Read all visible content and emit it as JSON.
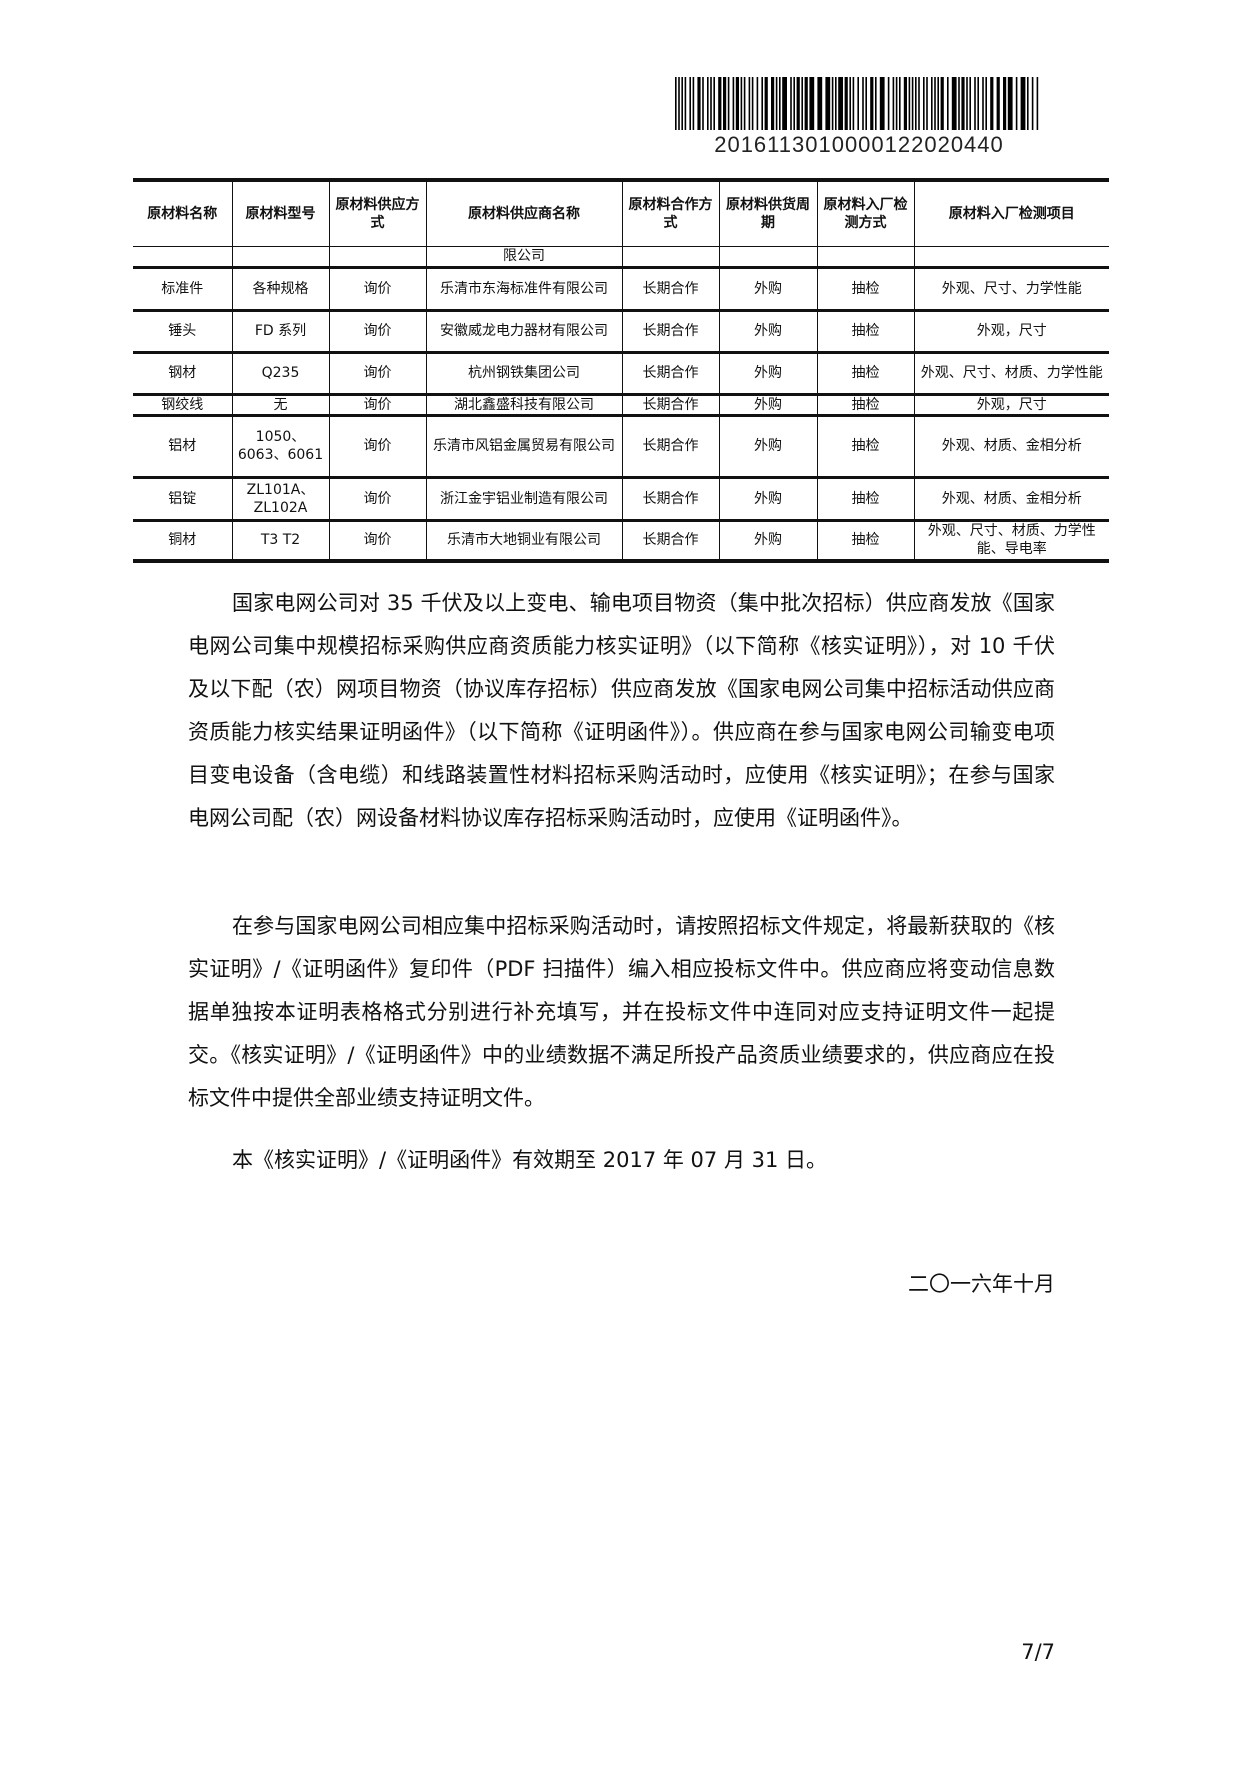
{
  "barcode": {
    "number": "2016113010000122020440"
  },
  "table": {
    "headers": [
      "原材料名称",
      "原材料型号",
      "原材料供应方式",
      "原材料供应商名称",
      "原材料合作方式",
      "原材料供货周期",
      "原材料入厂检测方式",
      "原材料入厂检测项目"
    ],
    "rows": [
      [
        "",
        "",
        "",
        "限公司",
        "",
        "",
        "",
        ""
      ],
      [
        "标准件",
        "各种规格",
        "询价",
        "乐清市东海标准件有限公司",
        "长期合作",
        "外购",
        "抽检",
        "外观、尺寸、力学性能"
      ],
      [
        "锤头",
        "FD 系列",
        "询价",
        "安徽威龙电力器材有限公司",
        "长期合作",
        "外购",
        "抽检",
        "外观，尺寸"
      ],
      [
        "钢材",
        "Q235",
        "询价",
        "杭州钢铁集团公司",
        "长期合作",
        "外购",
        "抽检",
        "外观、尺寸、材质、力学性能"
      ],
      [
        "钢绞线",
        "无",
        "询价",
        "湖北鑫盛科技有限公司",
        "长期合作",
        "外购",
        "抽检",
        "外观，尺寸"
      ],
      [
        "铝材",
        "1050、6063、6061",
        "询价",
        "乐清市风铝金属贸易有限公司",
        "长期合作",
        "外购",
        "抽检",
        "外观、材质、金相分析"
      ],
      [
        "铝锭",
        "ZL101A、ZL102A",
        "询价",
        "浙江金宇铝业制造有限公司",
        "长期合作",
        "外购",
        "抽检",
        "外观、材质、金相分析"
      ],
      [
        "铜材",
        "T3 T2",
        "询价",
        "乐清市大地铜业有限公司",
        "长期合作",
        "外购",
        "抽检",
        "外观、尺寸、材质、力学性能、导电率"
      ]
    ]
  },
  "paragraphs": [
    "国家电网公司对 35 千伏及以上变电、输电项目物资（集中批次招标）供应商发放《国家电网公司集中规模招标采购供应商资质能力核实证明》（以下简称《核实证明》），对 10 千伏及以下配（农）网项目物资（协议库存招标）供应商发放《国家电网公司集中招标活动供应商资质能力核实结果证明函件》（以下简称《证明函件》）。供应商在参与国家电网公司输变电项目变电设备（含电缆）和线路装置性材料招标采购活动时，应使用《核实证明》；在参与国家电网公司配（农）网设备材料协议库存招标采购活动时，应使用《证明函件》。",
    "在参与国家电网公司相应集中招标采购活动时，请按照招标文件规定，将最新获取的《核实证明》/《证明函件》复印件（PDF 扫描件）编入相应投标文件中。供应商应将变动信息数据单独按本证明表格格式分别进行补充填写，并在投标文件中连同对应支持证明文件一起提交。《核实证明》/《证明函件》中的业绩数据不满足所投产品资质业绩要求的，供应商应在投标文件中提供全部业绩支持证明文件。",
    "本《核实证明》/《证明函件》有效期至 2017 年 07 月 31 日。"
  ],
  "date": "二〇一六年十月",
  "page_number": "7/7"
}
